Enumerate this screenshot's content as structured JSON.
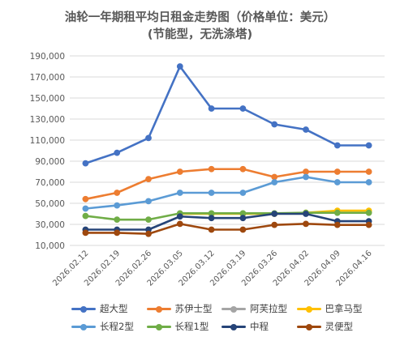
{
  "chart_data": {
    "type": "line",
    "title": "油轮一年期租平均日租金走势图（价格单位：美元）",
    "subtitle": "(节能型，无洗涤塔)",
    "xlabel": "",
    "ylabel": "",
    "ylim": [
      10000,
      190000
    ],
    "yticks": [
      "10,000",
      "30,000",
      "50,000",
      "70,000",
      "90,000",
      "110,000",
      "130,000",
      "150,000",
      "170,000",
      "190,000"
    ],
    "grid": true,
    "legend_position": "bottom",
    "categories": [
      "2026.02.12",
      "2026.02.19",
      "2026.02.26",
      "2026.03.05",
      "2026.03.12",
      "2026.03.19",
      "2026.03.26",
      "2026.04.02",
      "2026.04.09",
      "2026.04.16"
    ],
    "series": [
      {
        "name": "超大型",
        "color": "#4472C4",
        "values": [
          88000,
          98000,
          112000,
          180000,
          140000,
          140000,
          125000,
          120000,
          105000,
          105000
        ]
      },
      {
        "name": "苏伊士型",
        "color": "#ED7D31",
        "values": [
          54000,
          60000,
          73000,
          80000,
          82500,
          82500,
          75000,
          80000,
          80000,
          80000
        ]
      },
      {
        "name": "阿芙拉型",
        "color": "#A5A5A5",
        "values": [
          null,
          null,
          null,
          null,
          null,
          null,
          null,
          null,
          null,
          null
        ]
      },
      {
        "name": "巴拿马型",
        "color": "#FFC000",
        "values": [
          null,
          null,
          null,
          40000,
          40000,
          40000,
          40000,
          41000,
          43000,
          43000
        ]
      },
      {
        "name": "长程2型",
        "color": "#5B9BD5",
        "values": [
          45000,
          48000,
          52000,
          60000,
          60000,
          60000,
          70000,
          75000,
          70000,
          70000
        ]
      },
      {
        "name": "长程1型",
        "color": "#70AD47",
        "values": [
          38000,
          34500,
          34500,
          40500,
          40500,
          40500,
          40500,
          41000,
          41000,
          41000
        ]
      },
      {
        "name": "中程",
        "color": "#264478",
        "values": [
          25000,
          25000,
          25000,
          37500,
          36000,
          36000,
          40000,
          40000,
          33000,
          33000
        ]
      },
      {
        "name": "灵便型",
        "color": "#9E480E",
        "values": [
          22000,
          22000,
          21000,
          30500,
          25000,
          25000,
          29500,
          30500,
          29500,
          29500
        ]
      }
    ]
  }
}
